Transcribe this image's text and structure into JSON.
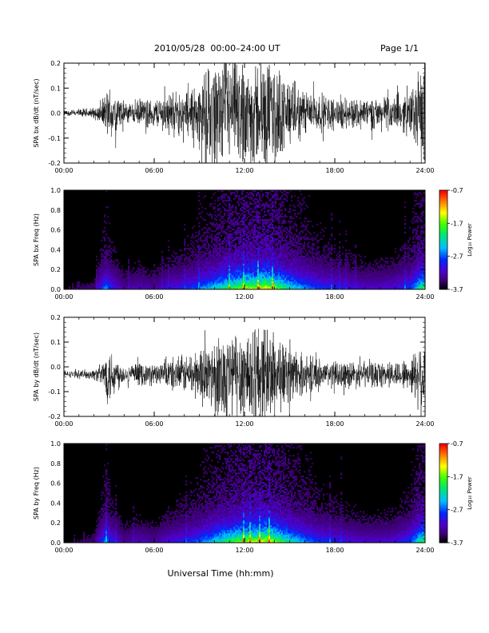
{
  "header": {
    "title": "2010/05/28  00:00–24:00 UT",
    "page": "Page 1/1"
  },
  "chart_data": [
    {
      "type": "line",
      "name": "bx-dbdt",
      "ylabel": "SPA bx dB/dt (nT/sec)",
      "xlim": [
        0,
        24
      ],
      "ylim": [
        -0.2,
        0.2
      ],
      "xticks": [
        "00:00",
        "06:00",
        "12:00",
        "18:00",
        "24:00"
      ],
      "yticks": [
        "-0.2",
        "-0.1",
        "0.0",
        "0.1",
        "0.2"
      ],
      "envelope_hours": [
        0,
        2,
        2.5,
        3,
        3.3,
        4,
        5,
        6,
        7,
        8,
        9,
        10,
        11,
        12,
        13,
        14,
        15,
        16,
        17,
        18,
        19,
        20,
        21,
        22,
        23,
        23.5,
        24
      ],
      "envelope_amp": [
        0.01,
        0.02,
        0.04,
        0.1,
        0.09,
        0.04,
        0.05,
        0.05,
        0.08,
        0.08,
        0.12,
        0.19,
        0.2,
        0.2,
        0.2,
        0.19,
        0.12,
        0.09,
        0.07,
        0.06,
        0.06,
        0.06,
        0.06,
        0.06,
        0.08,
        0.15,
        0.2
      ],
      "offset": 0.0
    },
    {
      "type": "heatmap",
      "name": "bx-spectrogram",
      "ylabel": "SPA bx Freq (Hz)",
      "xlim": [
        0,
        24
      ],
      "ylim": [
        0,
        1.0
      ],
      "xticks": [
        "00:00",
        "06:00",
        "12:00",
        "18:00",
        "24:00"
      ],
      "yticks": [
        "0.0",
        "0.2",
        "0.4",
        "0.6",
        "0.8",
        "1.0"
      ],
      "colorbar": {
        "label": "Log₁₀ Power",
        "ticks": [
          "-0.7",
          "-1.7",
          "-2.7",
          "-3.7"
        ],
        "range": [
          -3.7,
          -0.7
        ]
      }
    },
    {
      "type": "line",
      "name": "by-dbdt",
      "ylabel": "SPA by dB/dt (nT/sec)",
      "xlim": [
        0,
        24
      ],
      "ylim": [
        -0.2,
        0.2
      ],
      "xticks": [
        "00:00",
        "06:00",
        "12:00",
        "18:00",
        "24:00"
      ],
      "yticks": [
        "-0.2",
        "-0.1",
        "0.0",
        "0.1",
        "0.2"
      ],
      "envelope_hours": [
        0,
        2,
        2.5,
        3,
        3.3,
        4,
        5,
        6,
        7,
        8,
        9,
        10,
        11,
        12,
        13,
        14,
        15,
        16,
        17,
        18,
        19,
        20,
        21,
        22,
        23,
        23.5,
        24
      ],
      "envelope_amp": [
        0.01,
        0.02,
        0.04,
        0.12,
        0.08,
        0.03,
        0.04,
        0.04,
        0.06,
        0.07,
        0.1,
        0.14,
        0.17,
        0.2,
        0.2,
        0.17,
        0.1,
        0.07,
        0.06,
        0.05,
        0.05,
        0.05,
        0.05,
        0.05,
        0.06,
        0.12,
        0.2
      ],
      "offset": -0.03
    },
    {
      "type": "heatmap",
      "name": "by-spectrogram",
      "ylabel": "SPA by Freq (Hz)",
      "xlim": [
        0,
        24
      ],
      "ylim": [
        0,
        1.0
      ],
      "xticks": [
        "00:00",
        "06:00",
        "12:00",
        "18:00",
        "24:00"
      ],
      "yticks": [
        "0.0",
        "0.2",
        "0.4",
        "0.6",
        "0.8",
        "1.0"
      ],
      "colorbar": {
        "label": "Log₁₀ Power",
        "ticks": [
          "-0.7",
          "-1.7",
          "-2.7",
          "-3.7"
        ],
        "range": [
          -3.7,
          -0.7
        ]
      }
    }
  ],
  "xlabel": "Universal Time (hh:mm)"
}
